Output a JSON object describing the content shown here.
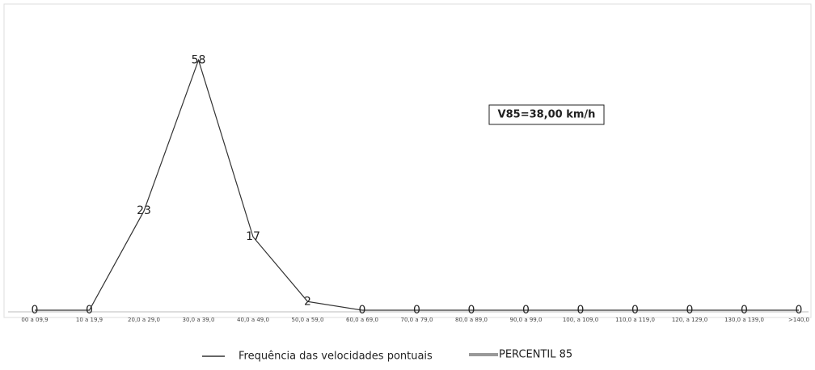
{
  "chart_data": {
    "type": "line",
    "categories": [
      "00 a 09,9",
      "10 a 19,9",
      "20,0 a 29,0",
      "30,0 a 39,0",
      "40,0 a 49,0",
      "50,0 a 59,0",
      "60,0 a 69,0",
      "70,0 a 79,0",
      "80,0 a 89,0",
      "90,0 a 99,0",
      "100, a 109,0",
      "110,0 a 119,0",
      "120, a 129,0",
      "130,0 a 139,0",
      ">140,0"
    ],
    "series": [
      {
        "name": "Frequência das velocidades pontuais",
        "color": "#333333",
        "values": [
          0,
          0,
          23,
          58,
          17,
          2,
          0,
          0,
          0,
          0,
          0,
          0,
          0,
          0,
          0
        ]
      }
    ],
    "legend": [
      {
        "name": "PERCENTIL 85",
        "color": "#999999"
      }
    ],
    "annotation": "V85=38,00 km/h",
    "ylim": [
      0,
      62
    ]
  }
}
